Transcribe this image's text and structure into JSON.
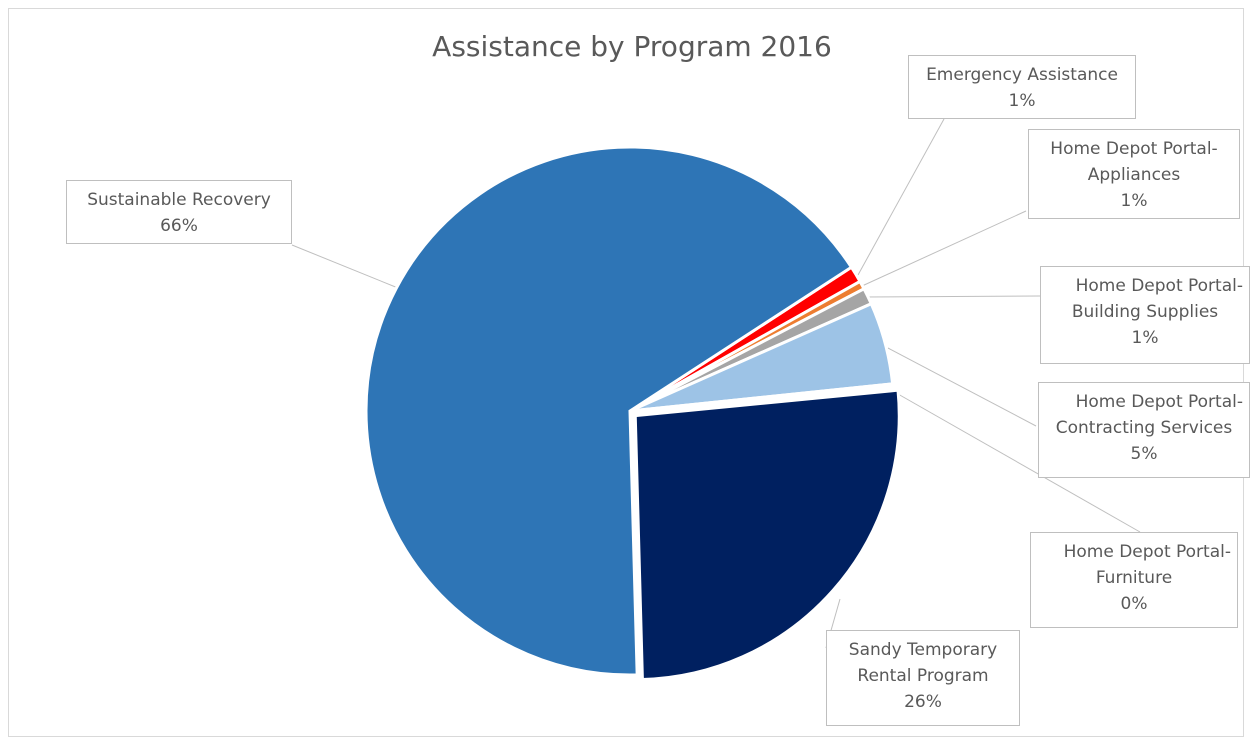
{
  "chart_data": {
    "type": "pie",
    "title": "Assistance by Program 2016",
    "legend": "none",
    "slices": [
      {
        "name": "Sustainable Recovery",
        "label_lines": [
          "Sustainable Recovery"
        ],
        "value": 66,
        "pct_text": "66%",
        "color": "#2e75b6"
      },
      {
        "name": "Emergency Assistance",
        "label_lines": [
          "Emergency Assistance"
        ],
        "value": 1,
        "pct_text": "1%",
        "color": "#ff0000"
      },
      {
        "name": "Home Depot Portal-Appliances",
        "label_lines": [
          "Home Depot Portal-",
          "Appliances"
        ],
        "value": 0.5,
        "pct_text": "1%",
        "color": "#ed7d31"
      },
      {
        "name": "Home Depot Portal-Building Supplies",
        "label_lines": [
          "Home Depot Portal-",
          "Building Supplies"
        ],
        "value": 1,
        "pct_text": "1%",
        "color": "#a5a5a5"
      },
      {
        "name": "Home Depot Portal-Contracting Services",
        "label_lines": [
          "Home Depot Portal-",
          "Contracting Services"
        ],
        "value": 5,
        "pct_text": "5%",
        "color": "#9dc3e6"
      },
      {
        "name": "Home Depot Portal-Furniture",
        "label_lines": [
          "Home Depot Portal-",
          "Furniture"
        ],
        "value": 0.1,
        "pct_text": "0%",
        "color": "#4472c4"
      },
      {
        "name": "Sandy Temporary Rental Program",
        "label_lines": [
          "Sandy Temporary",
          "Rental Program"
        ],
        "value": 26,
        "pct_text": "26%",
        "color": "#002060"
      }
    ]
  }
}
